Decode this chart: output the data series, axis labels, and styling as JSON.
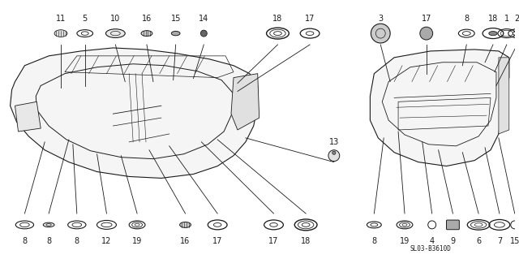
{
  "bg_color": "#ffffff",
  "fig_width": 6.4,
  "fig_height": 3.19,
  "dpi": 100,
  "diagram_code": "SL03-B3610D",
  "text_color": "#1a1a1a",
  "line_color": "#1a1a1a"
}
